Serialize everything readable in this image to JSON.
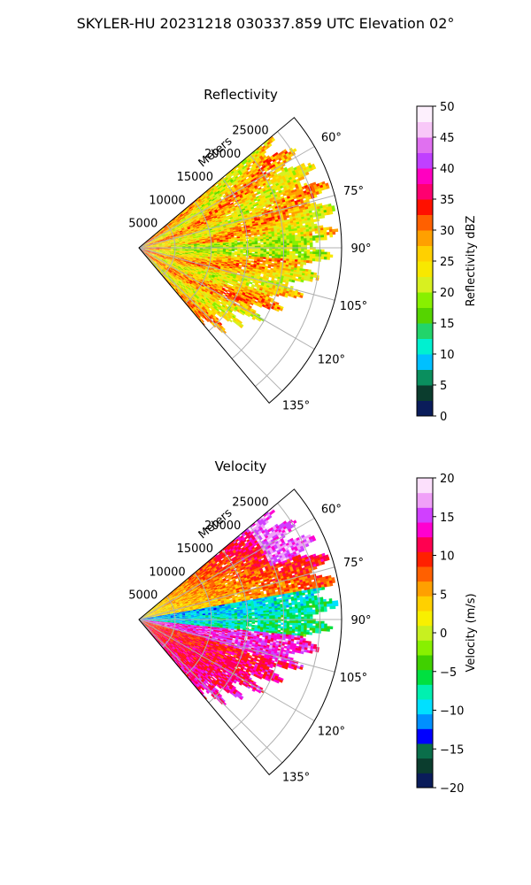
{
  "suptitle": "SKYLER-HU  20231218  030337.859 UTC Elevation 02°",
  "chart_data": [
    {
      "type": "heatmap",
      "projection": "polar-sector",
      "title": "Reflectivity",
      "radial_label": "Meters",
      "radial_ticks": [
        "5000",
        "10000",
        "15000",
        "20000",
        "25000"
      ],
      "radial_tick_values": [
        5000,
        10000,
        15000,
        20000,
        25000
      ],
      "radial_max": 28000,
      "angle_range_deg": [
        50,
        140
      ],
      "angle_ticks": [
        "60°",
        "75°",
        "90°",
        "105°",
        "120°",
        "135°"
      ],
      "angle_tick_values": [
        60,
        75,
        90,
        105,
        120,
        135
      ],
      "grid": true,
      "colorbar": {
        "label": "Reflectivity dBZ",
        "ticks": [
          "0",
          "5",
          "10",
          "15",
          "20",
          "25",
          "30",
          "35",
          "40",
          "45",
          "50"
        ],
        "range": [
          0,
          50
        ],
        "colormap": [
          "#0a1c5a",
          "#0b3d2e",
          "#0a8f5e",
          "#00c0ff",
          "#00f0d0",
          "#22d46a",
          "#55d400",
          "#88f000",
          "#d8f020",
          "#f8e800",
          "#ffd000",
          "#ffa000",
          "#ff6000",
          "#ff1000",
          "#ff0070",
          "#ff00c0",
          "#c040ff",
          "#e070f0",
          "#f8c8f8",
          "#fdf0fd"
        ]
      }
    },
    {
      "type": "heatmap",
      "projection": "polar-sector",
      "title": "Velocity",
      "radial_label": "Meters",
      "radial_ticks": [
        "5000",
        "10000",
        "15000",
        "20000",
        "25000"
      ],
      "radial_tick_values": [
        5000,
        10000,
        15000,
        20000,
        25000
      ],
      "radial_max": 28000,
      "angle_range_deg": [
        50,
        140
      ],
      "angle_ticks": [
        "60°",
        "75°",
        "90°",
        "105°",
        "120°",
        "135°"
      ],
      "angle_tick_values": [
        60,
        75,
        90,
        105,
        120,
        135
      ],
      "grid": true,
      "colorbar": {
        "label": "Velocity (m/s)",
        "ticks": [
          "−20",
          "−15",
          "−10",
          "−5",
          "0",
          "5",
          "10",
          "15",
          "20"
        ],
        "range": [
          -20,
          20
        ],
        "colormap": [
          "#0a1c5a",
          "#0b3d2e",
          "#0a6e4a",
          "#0000ff",
          "#0090ff",
          "#00e0ff",
          "#00f0b0",
          "#00e040",
          "#40d000",
          "#88f000",
          "#c8f020",
          "#f8f000",
          "#ffd000",
          "#ffa000",
          "#ff6000",
          "#ff2000",
          "#ff0050",
          "#ff00d0",
          "#d040ff",
          "#f0a0f8",
          "#fce0fc"
        ]
      }
    }
  ],
  "icons": {
    "colorbar": "colorbar-gradient"
  }
}
